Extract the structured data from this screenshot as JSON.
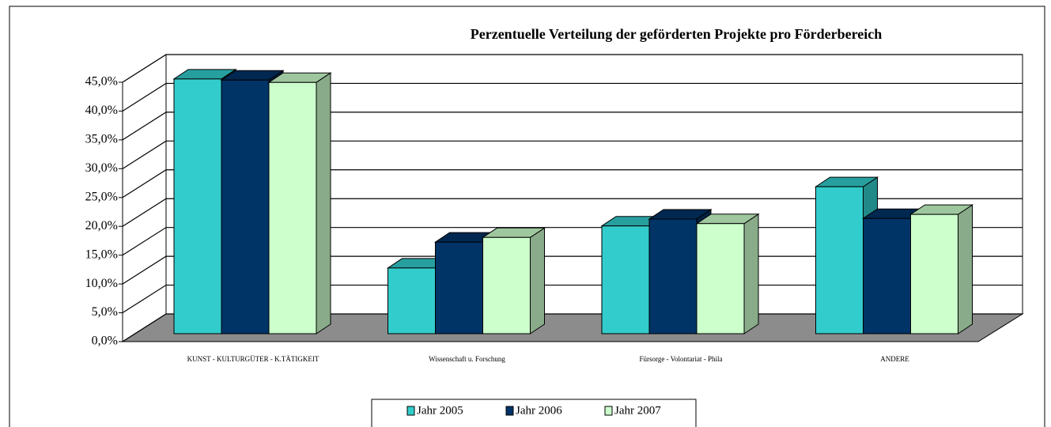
{
  "chart_data": {
    "type": "bar3d",
    "title": "Perzentuelle Verteilung der geförderten Projekte pro Förderbereich",
    "categories": [
      "KUNST - KULTURGÜTER - K.TÄTIGKEIT",
      "Wissenschaft u. Forschung",
      "Fürsorge - Volontariat - Phila",
      "ANDERE"
    ],
    "series": [
      {
        "name": "Jahr 2005",
        "color": "#33cccc",
        "values": [
          44.2,
          11.4,
          18.7,
          25.5
        ]
      },
      {
        "name": "Jahr 2006",
        "color": "#003366",
        "values": [
          44.0,
          15.9,
          19.9,
          20.0
        ]
      },
      {
        "name": "Jahr 2007",
        "color": "#ccffcc",
        "values": [
          43.6,
          16.7,
          19.1,
          20.7
        ]
      }
    ],
    "ylim": [
      0,
      45
    ],
    "yticks": [
      {
        "value": 0,
        "label": "0,0%"
      },
      {
        "value": 5,
        "label": "5,0%"
      },
      {
        "value": 10,
        "label": "10,0%"
      },
      {
        "value": 15,
        "label": "15,0%"
      },
      {
        "value": 20,
        "label": "20,0%"
      },
      {
        "value": 25,
        "label": "25,0%"
      },
      {
        "value": 30,
        "label": "30,0%"
      },
      {
        "value": 35,
        "label": "35,0%"
      },
      {
        "value": 40,
        "label": "40,0%"
      },
      {
        "value": 45,
        "label": "45,0%"
      }
    ],
    "grid": true,
    "legend": "bottom"
  }
}
